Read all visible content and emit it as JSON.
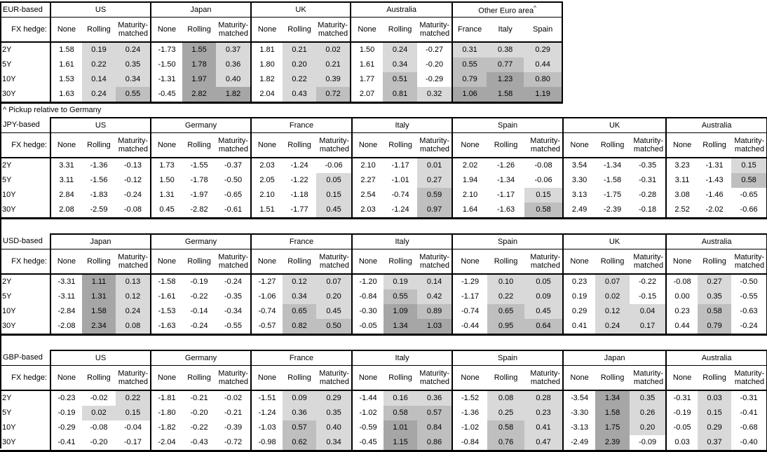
{
  "labels": {
    "fx_hedge": "FX hedge:",
    "tenors": [
      "2Y",
      "5Y",
      "10Y",
      "30Y"
    ],
    "hedge_cols": [
      "None",
      "Rolling",
      "Maturity-matched"
    ]
  },
  "footnote": "^ Pickup relative to Germany",
  "shading": {
    "note": "cell fill intensity by value; 'None' columns always unfilled",
    "none_fill": "#ffffff",
    "bands": [
      {
        "upto": 0.5,
        "color": "#d9d9d9"
      },
      {
        "upto": 1.0,
        "color": "#bfbfbf"
      },
      {
        "upto": null,
        "color": "#a6a6a6"
      }
    ]
  },
  "chart_data": [
    {
      "type": "table",
      "title": "EUR-based",
      "row_labels": [
        "2Y",
        "5Y",
        "10Y",
        "30Y"
      ],
      "groups": [
        {
          "name": "US",
          "columns": [
            "None",
            "Rolling",
            "Maturity-matched"
          ],
          "rows": [
            [
              "1.58",
              "0.19",
              "0.24"
            ],
            [
              "1.61",
              "0.22",
              "0.35"
            ],
            [
              "1.53",
              "0.14",
              "0.34"
            ],
            [
              "1.63",
              "0.24",
              "0.55"
            ]
          ]
        },
        {
          "name": "Japan",
          "columns": [
            "None",
            "Rolling",
            "Maturity-matched"
          ],
          "rows": [
            [
              "-1.73",
              "1.55",
              "0.37"
            ],
            [
              "-1.50",
              "1.78",
              "0.36"
            ],
            [
              "-1.31",
              "1.97",
              "0.40"
            ],
            [
              "-0.45",
              "2.82",
              "1.82"
            ]
          ]
        },
        {
          "name": "UK",
          "columns": [
            "None",
            "Rolling",
            "Maturity-matched"
          ],
          "rows": [
            [
              "1.81",
              "0.21",
              "0.02"
            ],
            [
              "1.80",
              "0.20",
              "0.21"
            ],
            [
              "1.82",
              "0.22",
              "0.39"
            ],
            [
              "2.04",
              "0.43",
              "0.72"
            ]
          ]
        },
        {
          "name": "Australia",
          "columns": [
            "None",
            "Rolling",
            "Maturity-matched"
          ],
          "rows": [
            [
              "1.50",
              "0.24",
              "-0.27"
            ],
            [
              "1.61",
              "0.34",
              "-0.20"
            ],
            [
              "1.77",
              "0.51",
              "-0.29"
            ],
            [
              "2.07",
              "0.81",
              "0.32"
            ]
          ]
        },
        {
          "name": "Other Euro area",
          "sup": "^",
          "shade_all": true,
          "columns": [
            "France",
            "Italy",
            "Spain"
          ],
          "rows": [
            [
              "0.31",
              "0.38",
              "0.29"
            ],
            [
              "0.55",
              "0.77",
              "0.44"
            ],
            [
              "0.79",
              "1.23",
              "0.80"
            ],
            [
              "1.06",
              "1.58",
              "1.19"
            ]
          ]
        }
      ]
    },
    {
      "type": "table",
      "title": "JPY-based",
      "row_labels": [
        "2Y",
        "5Y",
        "10Y",
        "30Y"
      ],
      "groups": [
        {
          "name": "US",
          "columns": [
            "None",
            "Rolling",
            "Maturity-matched"
          ],
          "rows": [
            [
              "3.31",
              "-1.36",
              "-0.13"
            ],
            [
              "3.11",
              "-1.56",
              "-0.12"
            ],
            [
              "2.84",
              "-1.83",
              "-0.24"
            ],
            [
              "2.08",
              "-2.59",
              "-0.08"
            ]
          ]
        },
        {
          "name": "Germany",
          "columns": [
            "None",
            "Rolling",
            "Maturity-matched"
          ],
          "rows": [
            [
              "1.73",
              "-1.55",
              "-0.37"
            ],
            [
              "1.50",
              "-1.78",
              "-0.50"
            ],
            [
              "1.31",
              "-1.97",
              "-0.65"
            ],
            [
              "0.45",
              "-2.82",
              "-0.61"
            ]
          ]
        },
        {
          "name": "France",
          "columns": [
            "None",
            "Rolling",
            "Maturity-matched"
          ],
          "rows": [
            [
              "2.03",
              "-1.24",
              "-0.06"
            ],
            [
              "2.05",
              "-1.22",
              "0.05"
            ],
            [
              "2.10",
              "-1.18",
              "0.15"
            ],
            [
              "1.51",
              "-1.77",
              "0.45"
            ]
          ]
        },
        {
          "name": "Italy",
          "columns": [
            "None",
            "Rolling",
            "Maturity-matched"
          ],
          "rows": [
            [
              "2.10",
              "-1.17",
              "0.01"
            ],
            [
              "2.27",
              "-1.01",
              "0.27"
            ],
            [
              "2.54",
              "-0.74",
              "0.59"
            ],
            [
              "2.03",
              "-1.24",
              "0.97"
            ]
          ]
        },
        {
          "name": "Spain",
          "columns": [
            "None",
            "Rolling",
            "Maturity-matched"
          ],
          "rows": [
            [
              "2.02",
              "-1.26",
              "-0.08"
            ],
            [
              "1.94",
              "-1.34",
              "-0.06"
            ],
            [
              "2.10",
              "-1.17",
              "0.15"
            ],
            [
              "1.64",
              "-1.63",
              "0.58"
            ]
          ]
        },
        {
          "name": "UK",
          "columns": [
            "None",
            "Rolling",
            "Maturity-matched"
          ],
          "rows": [
            [
              "3.54",
              "-1.34",
              "-0.35"
            ],
            [
              "3.30",
              "-1.58",
              "-0.31"
            ],
            [
              "3.13",
              "-1.75",
              "-0.28"
            ],
            [
              "2.49",
              "-2.39",
              "-0.18"
            ]
          ]
        },
        {
          "name": "Australia",
          "columns": [
            "None",
            "Rolling",
            "Maturity-matched"
          ],
          "rows": [
            [
              "3.23",
              "-1.31",
              "0.15"
            ],
            [
              "3.11",
              "-1.43",
              "0.58"
            ],
            [
              "3.08",
              "-1.46",
              "-0.65"
            ],
            [
              "2.52",
              "-2.02",
              "-0.66"
            ]
          ]
        }
      ]
    },
    {
      "type": "table",
      "title": "USD-based",
      "row_labels": [
        "2Y",
        "5Y",
        "10Y",
        "30Y"
      ],
      "groups": [
        {
          "name": "Japan",
          "columns": [
            "None",
            "Rolling",
            "Maturity-matched"
          ],
          "rows": [
            [
              "-3.31",
              "1.11",
              "0.13"
            ],
            [
              "-3.11",
              "1.31",
              "0.12"
            ],
            [
              "-2.84",
              "1.58",
              "0.24"
            ],
            [
              "-2.08",
              "2.34",
              "0.08"
            ]
          ]
        },
        {
          "name": "Germany",
          "columns": [
            "None",
            "Rolling",
            "Maturity-matched"
          ],
          "rows": [
            [
              "-1.58",
              "-0.19",
              "-0.24"
            ],
            [
              "-1.61",
              "-0.22",
              "-0.35"
            ],
            [
              "-1.53",
              "-0.14",
              "-0.34"
            ],
            [
              "-1.63",
              "-0.24",
              "-0.55"
            ]
          ]
        },
        {
          "name": "France",
          "columns": [
            "None",
            "Rolling",
            "Maturity-matched"
          ],
          "rows": [
            [
              "-1.27",
              "0.12",
              "0.07"
            ],
            [
              "-1.06",
              "0.34",
              "0.20"
            ],
            [
              "-0.74",
              "0.65",
              "0.45"
            ],
            [
              "-0.57",
              "0.82",
              "0.50"
            ]
          ]
        },
        {
          "name": "Italy",
          "columns": [
            "None",
            "Rolling",
            "Maturity-matched"
          ],
          "rows": [
            [
              "-1.20",
              "0.19",
              "0.14"
            ],
            [
              "-0.84",
              "0.55",
              "0.42"
            ],
            [
              "-0.30",
              "1.09",
              "0.89"
            ],
            [
              "-0.05",
              "1.34",
              "1.03"
            ]
          ]
        },
        {
          "name": "Spain",
          "columns": [
            "None",
            "Rolling",
            "Maturity-matched"
          ],
          "rows": [
            [
              "-1.29",
              "0.10",
              "0.05"
            ],
            [
              "-1.17",
              "0.22",
              "0.09"
            ],
            [
              "-0.74",
              "0.65",
              "0.45"
            ],
            [
              "-0.44",
              "0.95",
              "0.64"
            ]
          ]
        },
        {
          "name": "UK",
          "columns": [
            "None",
            "Rolling",
            "Maturity-matched"
          ],
          "rows": [
            [
              "0.23",
              "0.07",
              "-0.22"
            ],
            [
              "0.19",
              "0.02",
              "-0.15"
            ],
            [
              "0.29",
              "0.12",
              "0.04"
            ],
            [
              "0.41",
              "0.24",
              "0.17"
            ]
          ]
        },
        {
          "name": "Australia",
          "columns": [
            "None",
            "Rolling",
            "Maturity-matched"
          ],
          "rows": [
            [
              "-0.08",
              "0.27",
              "-0.50"
            ],
            [
              "0.00",
              "0.35",
              "-0.55"
            ],
            [
              "0.23",
              "0.58",
              "-0.63"
            ],
            [
              "0.44",
              "0.79",
              "-0.24"
            ]
          ]
        }
      ]
    },
    {
      "type": "table",
      "title": "GBP-based",
      "row_labels": [
        "2Y",
        "5Y",
        "10Y",
        "30Y"
      ],
      "groups": [
        {
          "name": "US",
          "columns": [
            "None",
            "Rolling",
            "Maturity-matched"
          ],
          "rows": [
            [
              "-0.23",
              "-0.02",
              "0.22"
            ],
            [
              "-0.19",
              "0.02",
              "0.15"
            ],
            [
              "-0.29",
              "-0.08",
              "-0.04"
            ],
            [
              "-0.41",
              "-0.20",
              "-0.17"
            ]
          ]
        },
        {
          "name": "Germany",
          "columns": [
            "None",
            "Rolling",
            "Maturity-matched"
          ],
          "rows": [
            [
              "-1.81",
              "-0.21",
              "-0.02"
            ],
            [
              "-1.80",
              "-0.20",
              "-0.21"
            ],
            [
              "-1.82",
              "-0.22",
              "-0.39"
            ],
            [
              "-2.04",
              "-0.43",
              "-0.72"
            ]
          ]
        },
        {
          "name": "France",
          "columns": [
            "None",
            "Rolling",
            "Maturity-matched"
          ],
          "rows": [
            [
              "-1.51",
              "0.09",
              "0.29"
            ],
            [
              "-1.24",
              "0.36",
              "0.35"
            ],
            [
              "-1.03",
              "0.57",
              "0.40"
            ],
            [
              "-0.98",
              "0.62",
              "0.34"
            ]
          ]
        },
        {
          "name": "Italy",
          "columns": [
            "None",
            "Rolling",
            "Maturity-matched"
          ],
          "rows": [
            [
              "-1.44",
              "0.16",
              "0.36"
            ],
            [
              "-1.02",
              "0.58",
              "0.57"
            ],
            [
              "-0.59",
              "1.01",
              "0.84"
            ],
            [
              "-0.45",
              "1.15",
              "0.86"
            ]
          ]
        },
        {
          "name": "Spain",
          "columns": [
            "None",
            "Rolling",
            "Maturity-matched"
          ],
          "rows": [
            [
              "-1.52",
              "0.08",
              "0.28"
            ],
            [
              "-1.36",
              "0.25",
              "0.23"
            ],
            [
              "-1.02",
              "0.58",
              "0.41"
            ],
            [
              "-0.84",
              "0.76",
              "0.47"
            ]
          ]
        },
        {
          "name": "Japan",
          "columns": [
            "None",
            "Rolling",
            "Maturity-matched"
          ],
          "rows": [
            [
              "-3.54",
              "1.34",
              "0.35"
            ],
            [
              "-3.30",
              "1.58",
              "0.26"
            ],
            [
              "-3.13",
              "1.75",
              "0.20"
            ],
            [
              "-2.49",
              "2.39",
              "-0.09"
            ]
          ]
        },
        {
          "name": "Australia",
          "columns": [
            "None",
            "Rolling",
            "Maturity-matched"
          ],
          "rows": [
            [
              "-0.31",
              "0.03",
              "-0.31"
            ],
            [
              "-0.19",
              "0.15",
              "-0.41"
            ],
            [
              "-0.05",
              "0.29",
              "-0.68"
            ],
            [
              "0.03",
              "0.37",
              "-0.40"
            ]
          ]
        }
      ]
    }
  ]
}
